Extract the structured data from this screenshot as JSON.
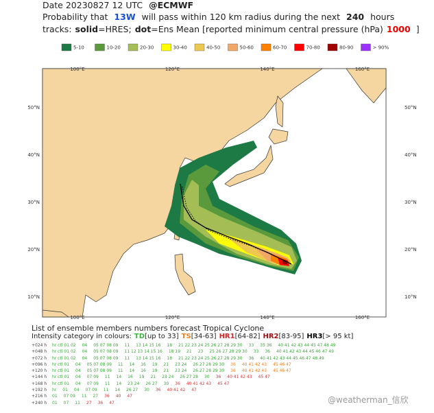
{
  "header": {
    "line1": [
      "Date 20230827 12 UTC",
      "@ECMWF"
    ],
    "line2": [
      "Probability that",
      "13W",
      "will pass within 120 km radius during the next",
      "240",
      "hours"
    ],
    "line3": [
      "tracks:",
      "solid",
      "=HRES;",
      "dot",
      "=Ens Mean [reported minimum central pressure (hPa)",
      "1000",
      "]"
    ]
  },
  "legend": [
    {
      "label": "5-10",
      "color": "#1d7a45"
    },
    {
      "label": "10-20",
      "color": "#5b9a3c"
    },
    {
      "label": "20-30",
      "color": "#a5bd55"
    },
    {
      "label": "30-40",
      "color": "#ffff00"
    },
    {
      "label": "40-50",
      "color": "#ecc850"
    },
    {
      "label": "50-60",
      "color": "#f3a766"
    },
    {
      "label": "60-70",
      "color": "#ff8000"
    },
    {
      "label": "70-80",
      "color": "#ff0000"
    },
    {
      "label": "80-90",
      "color": "#a00000"
    },
    {
      "label": "> 90%",
      "color": "#9b30ff"
    }
  ],
  "map": {
    "lon_labels": [
      "100°E",
      "120°E",
      "140°E",
      "160°E"
    ],
    "lat_labels": [
      "50°N",
      "40°N",
      "30°N",
      "20°N",
      "10°N"
    ]
  },
  "list": {
    "title": "List of ensemble members numbers forecast Tropical Cyclone",
    "intensity": [
      "Intensity category in colours:",
      "TD",
      "[up to 33]",
      "TS",
      "[34-63]",
      "HR1",
      "[64-82]",
      "HR2",
      "[83-95]",
      "HR3",
      "[> 95 kt]"
    ],
    "rows": [
      {
        "label": "+024 h",
        "cells": [
          "hr ctl 01 02",
          "04",
          "05 07 08 09",
          "11",
          "13 14 15 16",
          "18",
          "21 22 23 24 25 26 27 28 29 30",
          "33",
          "35 36",
          "40 41 42 43 44 45 47 48 49"
        ]
      },
      {
        "label": "+048 h",
        "cells": [
          "hr ctl 01 02",
          "04",
          "05 07 08 09",
          "11 12 13 14 15 16",
          "18 19",
          "21",
          "23",
          "25 26 27 28 29 30",
          "33",
          "36",
          "40 41 42 43 44 45 46 47 49"
        ]
      },
      {
        "label": "+072 h",
        "cells": [
          "hr ctl 01 02",
          "04",
          "05 07 08 09",
          "11",
          "13 14 15 16",
          "18",
          "21 22 23 24 25 26 27 28 29 30",
          "36",
          "40 41 42 43 44 45 46 47 48 49"
        ]
      },
      {
        "label": "+096 h",
        "cells": [
          "hr ctl 01",
          "04",
          "05 07 08 09",
          "11",
          "14",
          "16",
          "19",
          "21",
          "23 24",
          "26 27 28 29 30",
          "36",
          "40 41 42 43",
          "45 46 47"
        ]
      },
      {
        "label": "+120 h",
        "cells": [
          "hr ctl 01",
          "04",
          "05 07 08 09",
          "11",
          "14",
          "16",
          "19",
          "21",
          "23 24",
          "26 27 28 29 30",
          "36",
          "40 41 42 43",
          "45 46 47"
        ]
      },
      {
        "label": "+144 h",
        "cells": [
          "hr ctl 01",
          "04",
          "07 09",
          "11",
          "14",
          "16",
          "19",
          "21",
          "23 24",
          "26 27 28",
          "30",
          "36",
          "40 41 42 43",
          "45 47"
        ]
      },
      {
        "label": "+168 h",
        "cells": [
          "hr ctl 01",
          "04",
          "07 09",
          "11",
          "14",
          "23 24",
          "26 27",
          "30",
          "36",
          "40 41 42 43",
          "45 47"
        ]
      },
      {
        "label": "+192 h",
        "cells": [
          "hr",
          "01",
          "04",
          "07 09",
          "11",
          "14",
          "26 27",
          "30",
          "36",
          "40 41 42",
          "47"
        ]
      },
      {
        "label": "+216 h",
        "cells": [
          "01",
          "07 09",
          "11",
          "27",
          "36",
          "40",
          "47"
        ]
      },
      {
        "label": "+240 h",
        "cells": [
          "01",
          "07",
          "11",
          "27",
          "36",
          "47"
        ]
      }
    ]
  },
  "watermark": "@weatherman_信欣"
}
